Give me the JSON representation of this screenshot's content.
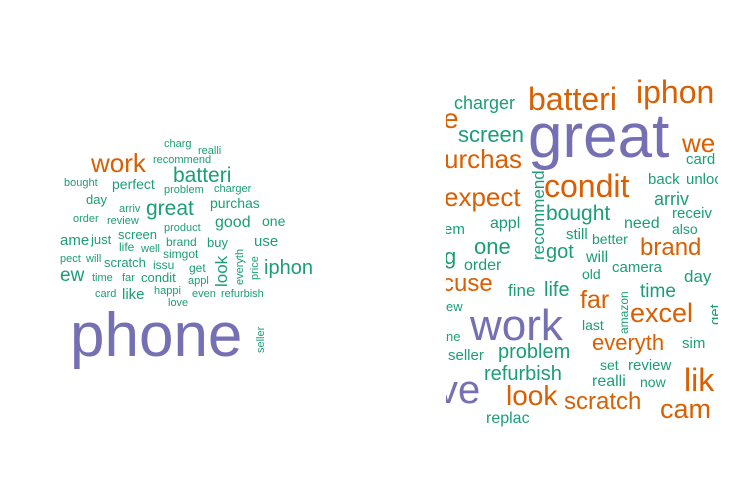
{
  "palette": {
    "teal": "#1b9e77",
    "orange": "#d95f02",
    "purple": "#7570b3"
  },
  "left_cloud": {
    "words": [
      {
        "text": "charg",
        "color": "teal"
      },
      {
        "text": "realli",
        "color": "teal"
      },
      {
        "text": "recommend",
        "color": "teal"
      },
      {
        "text": "work",
        "color": "orange"
      },
      {
        "text": "batteri",
        "color": "teal"
      },
      {
        "text": "bought",
        "color": "teal"
      },
      {
        "text": "perfect",
        "color": "teal"
      },
      {
        "text": "problem",
        "color": "teal"
      },
      {
        "text": "charger",
        "color": "teal"
      },
      {
        "text": "day",
        "color": "teal"
      },
      {
        "text": "purchas",
        "color": "teal"
      },
      {
        "text": "great",
        "color": "teal"
      },
      {
        "text": "arriv",
        "color": "teal"
      },
      {
        "text": "order",
        "color": "teal"
      },
      {
        "text": "review",
        "color": "teal"
      },
      {
        "text": "good",
        "color": "teal"
      },
      {
        "text": "one",
        "color": "teal"
      },
      {
        "text": "product",
        "color": "teal"
      },
      {
        "text": "ame",
        "color": "teal"
      },
      {
        "text": "just",
        "color": "teal"
      },
      {
        "text": "screen",
        "color": "teal"
      },
      {
        "text": "brand",
        "color": "teal"
      },
      {
        "text": "buy",
        "color": "teal"
      },
      {
        "text": "use",
        "color": "teal"
      },
      {
        "text": "life",
        "color": "teal"
      },
      {
        "text": "well",
        "color": "teal"
      },
      {
        "text": "simgot",
        "color": "teal"
      },
      {
        "text": "ew",
        "color": "teal"
      },
      {
        "text": "pect",
        "color": "teal"
      },
      {
        "text": "will",
        "color": "teal"
      },
      {
        "text": "scratch",
        "color": "teal"
      },
      {
        "text": "issu",
        "color": "teal"
      },
      {
        "text": "get",
        "color": "teal"
      },
      {
        "text": "iphon",
        "color": "teal"
      },
      {
        "text": "time",
        "color": "teal"
      },
      {
        "text": "far",
        "color": "teal"
      },
      {
        "text": "condit",
        "color": "teal"
      },
      {
        "text": "appl",
        "color": "teal"
      },
      {
        "text": "card",
        "color": "teal"
      },
      {
        "text": "like",
        "color": "teal"
      },
      {
        "text": "happi",
        "color": "teal"
      },
      {
        "text": "even",
        "color": "teal"
      },
      {
        "text": "refurbish",
        "color": "teal"
      },
      {
        "text": "love",
        "color": "teal"
      },
      {
        "text": "look",
        "color": "teal"
      },
      {
        "text": "everyth",
        "color": "teal"
      },
      {
        "text": "price",
        "color": "teal"
      },
      {
        "text": "phone",
        "color": "purple"
      },
      {
        "text": "seller",
        "color": "teal"
      }
    ]
  },
  "right_cloud": {
    "words": [
      {
        "text": "charger",
        "color": "teal"
      },
      {
        "text": "batteri",
        "color": "orange"
      },
      {
        "text": "iphon",
        "color": "orange"
      },
      {
        "text": "e",
        "color": "orange"
      },
      {
        "text": "screen",
        "color": "teal"
      },
      {
        "text": "great",
        "color": "purple"
      },
      {
        "text": "we",
        "color": "orange"
      },
      {
        "text": "urchas",
        "color": "orange"
      },
      {
        "text": "card",
        "color": "teal"
      },
      {
        "text": "condit",
        "color": "orange"
      },
      {
        "text": "back",
        "color": "teal"
      },
      {
        "text": "unloc",
        "color": "teal"
      },
      {
        "text": "expect",
        "color": "orange"
      },
      {
        "text": "recommend",
        "color": "teal"
      },
      {
        "text": "arriv",
        "color": "teal"
      },
      {
        "text": "bought",
        "color": "teal"
      },
      {
        "text": "receiv",
        "color": "teal"
      },
      {
        "text": "em",
        "color": "teal"
      },
      {
        "text": "appl",
        "color": "teal"
      },
      {
        "text": "need",
        "color": "teal"
      },
      {
        "text": "also",
        "color": "teal"
      },
      {
        "text": "still",
        "color": "teal"
      },
      {
        "text": "g",
        "color": "teal"
      },
      {
        "text": "one",
        "color": "teal"
      },
      {
        "text": "better",
        "color": "teal"
      },
      {
        "text": "brand",
        "color": "orange"
      },
      {
        "text": "got",
        "color": "teal"
      },
      {
        "text": "will",
        "color": "teal"
      },
      {
        "text": "order",
        "color": "teal"
      },
      {
        "text": "camera",
        "color": "teal"
      },
      {
        "text": "day",
        "color": "teal"
      },
      {
        "text": "cuse",
        "color": "orange"
      },
      {
        "text": "old",
        "color": "teal"
      },
      {
        "text": "fine",
        "color": "teal"
      },
      {
        "text": "life",
        "color": "teal"
      },
      {
        "text": "time",
        "color": "teal"
      },
      {
        "text": "amazon",
        "color": "teal"
      },
      {
        "text": "far",
        "color": "orange"
      },
      {
        "text": "ew",
        "color": "teal"
      },
      {
        "text": "work",
        "color": "purple"
      },
      {
        "text": "excel",
        "color": "orange"
      },
      {
        "text": "get",
        "color": "teal"
      },
      {
        "text": "last",
        "color": "teal"
      },
      {
        "text": "ne",
        "color": "teal"
      },
      {
        "text": "everyth",
        "color": "orange"
      },
      {
        "text": "problem",
        "color": "teal"
      },
      {
        "text": "sim",
        "color": "teal"
      },
      {
        "text": "seller",
        "color": "teal"
      },
      {
        "text": "set",
        "color": "teal"
      },
      {
        "text": "review",
        "color": "teal"
      },
      {
        "text": "refurbish",
        "color": "teal"
      },
      {
        "text": "lik",
        "color": "orange"
      },
      {
        "text": "realli",
        "color": "teal"
      },
      {
        "text": "now",
        "color": "teal"
      },
      {
        "text": "ve",
        "color": "purple"
      },
      {
        "text": "look",
        "color": "orange"
      },
      {
        "text": "scratch",
        "color": "orange"
      },
      {
        "text": "cam",
        "color": "orange"
      },
      {
        "text": "replac",
        "color": "teal"
      }
    ]
  }
}
